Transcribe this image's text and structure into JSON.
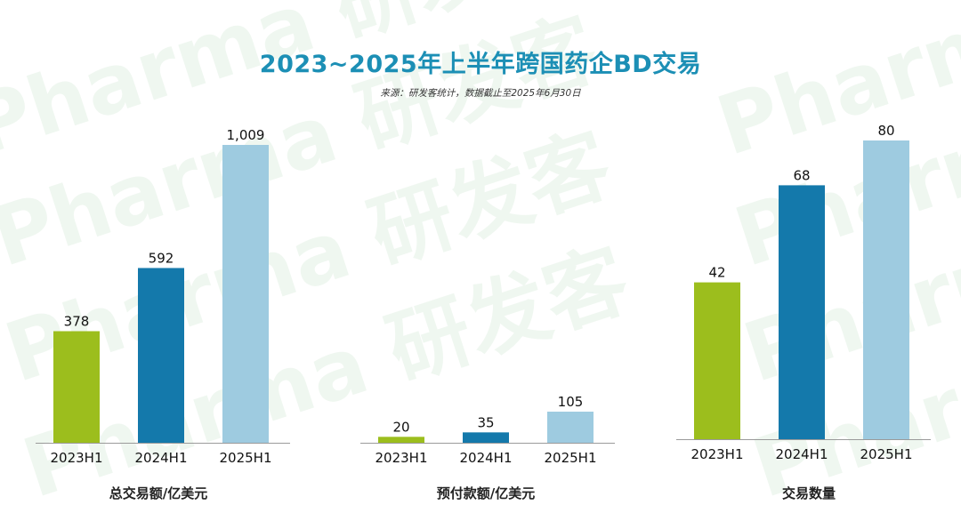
{
  "header": {
    "title": "2023~2025年上半年跨国药企BD交易",
    "source": "来源：研发客统计，数据截止至2025年6月30日"
  },
  "watermark": {
    "text_en": "Pharma",
    "text_cn": "研发客"
  },
  "colors": {
    "title": "#1c8fb5",
    "bar_2023": "#9cbe1d",
    "bar_2024": "#1479ab",
    "bar_2025": "#9ecbe0",
    "axis": "#9a9a9a"
  },
  "chart_data": [
    {
      "type": "bar",
      "categories": [
        "2023H1",
        "2024H1",
        "2025H1"
      ],
      "values": [
        378,
        592,
        1009
      ],
      "value_labels": [
        "378",
        "592",
        "1,009"
      ],
      "xlabel": "总交易额/亿美元",
      "ylim": [
        0,
        1009
      ]
    },
    {
      "type": "bar",
      "categories": [
        "2023H1",
        "2024H1",
        "2025H1"
      ],
      "values": [
        20,
        35,
        105
      ],
      "value_labels": [
        "20",
        "35",
        "105"
      ],
      "xlabel": "预付款额/亿美元",
      "ylim": [
        0,
        105
      ]
    },
    {
      "type": "bar",
      "categories": [
        "2023H1",
        "2024H1",
        "2025H1"
      ],
      "values": [
        42,
        68,
        80
      ],
      "value_labels": [
        "42",
        "68",
        "80"
      ],
      "xlabel": "交易数量",
      "ylim": [
        0,
        80
      ]
    }
  ]
}
